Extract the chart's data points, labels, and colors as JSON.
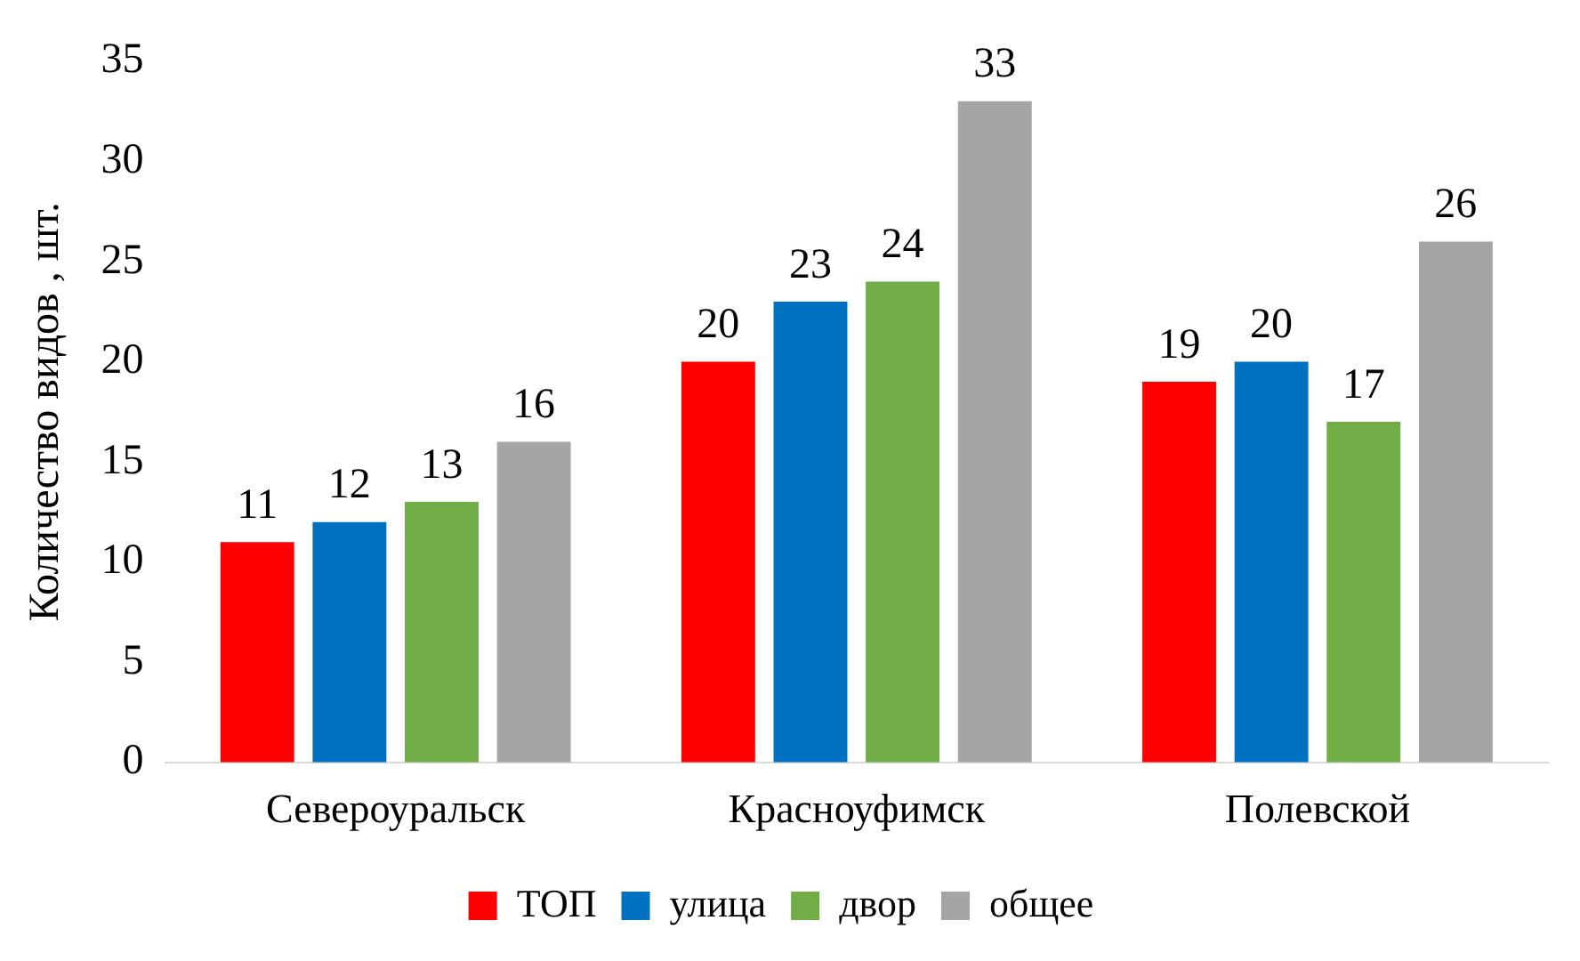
{
  "chart_data": {
    "type": "bar",
    "ylabel": "Количество видов , шт.",
    "categories": [
      "Североуральск",
      "Красноуфимск",
      "Полевской"
    ],
    "series": [
      {
        "name": "ТОП",
        "color": "#ff0000",
        "values": [
          11,
          20,
          19
        ]
      },
      {
        "name": "улица",
        "color": "#0070c0",
        "values": [
          12,
          23,
          20
        ]
      },
      {
        "name": "двор",
        "color": "#70ad47",
        "values": [
          13,
          24,
          17
        ]
      },
      {
        "name": "общее",
        "color": "#a5a5a5",
        "values": [
          16,
          33,
          26
        ]
      }
    ],
    "ylim": [
      0,
      35
    ],
    "yticks": [
      0,
      5,
      10,
      15,
      20,
      25,
      30,
      35
    ],
    "grid": false,
    "legend": "bottom",
    "data_labels": true
  }
}
